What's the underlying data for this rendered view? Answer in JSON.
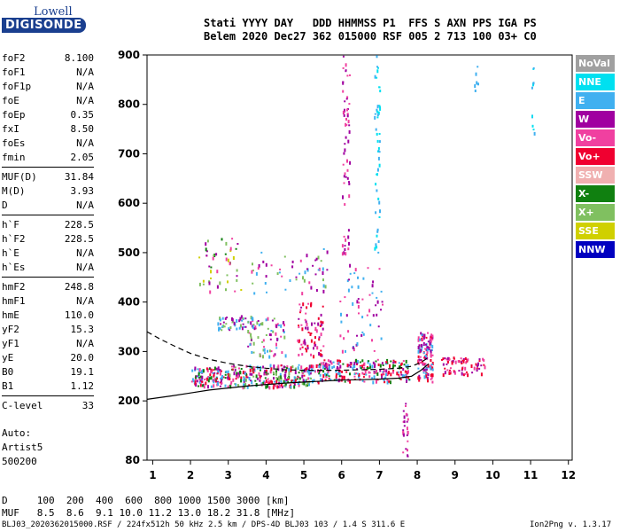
{
  "logo": {
    "line1": "Lowell",
    "line2": "DIGISONDE"
  },
  "header": {
    "labels": "Stati YYYY DAY   DDD HHMMSS P1  FFS S AXN PPS IGA PS",
    "values": "Belem 2020 Dec27 362 015000 RSF 005 2 713 100 03+ C0"
  },
  "params": [
    {
      "label": "foF2",
      "value": "8.100"
    },
    {
      "label": "foF1",
      "value": "N/A"
    },
    {
      "label": "foF1p",
      "value": "N/A"
    },
    {
      "label": "foE",
      "value": "N/A"
    },
    {
      "label": "foEp",
      "value": "0.35"
    },
    {
      "label": "fxI",
      "value": "8.50"
    },
    {
      "label": "foEs",
      "value": "N/A"
    },
    {
      "label": "fmin",
      "value": "2.05"
    },
    {
      "label": "MUF(D)",
      "value": "31.84"
    },
    {
      "label": "M(D)",
      "value": "3.93"
    },
    {
      "label": "D",
      "value": "N/A"
    },
    {
      "label": "h`F",
      "value": "228.5"
    },
    {
      "label": "h`F2",
      "value": "228.5"
    },
    {
      "label": "h`E",
      "value": "N/A"
    },
    {
      "label": "h`Es",
      "value": "N/A"
    },
    {
      "label": "hmF2",
      "value": "248.8"
    },
    {
      "label": "hmF1",
      "value": "N/A"
    },
    {
      "label": "hmE",
      "value": "110.0"
    },
    {
      "label": "yF2",
      "value": "15.3"
    },
    {
      "label": "yF1",
      "value": "N/A"
    },
    {
      "label": "yE",
      "value": "20.0"
    },
    {
      "label": "B0",
      "value": "19.1"
    },
    {
      "label": "B1",
      "value": "1.12"
    },
    {
      "label": "C-level",
      "value": "33"
    }
  ],
  "auto": {
    "line1": "Auto:",
    "line2": "Artist5",
    "line3": "500200"
  },
  "legend": [
    {
      "label": "NoVal",
      "color": "#a0a0a0"
    },
    {
      "label": "NNE",
      "color": "#00e0f0"
    },
    {
      "label": "E",
      "color": "#40b0f0"
    },
    {
      "label": "W",
      "color": "#a000a0"
    },
    {
      "label": "Vo-",
      "color": "#f040a0"
    },
    {
      "label": "Vo+",
      "color": "#f00030"
    },
    {
      "label": "SSW",
      "color": "#f0b0b0"
    },
    {
      "label": "X-",
      "color": "#108010"
    },
    {
      "label": "X+",
      "color": "#80c060"
    },
    {
      "label": "SSE",
      "color": "#d0d000"
    },
    {
      "label": "NNW",
      "color": "#0000c0"
    }
  ],
  "footer": {
    "row1": "D     100  200  400  600  800 1000 1500 3000 [km]",
    "row2": "MUF   8.5  8.6  9.1 10.0 11.2 13.0 18.2 31.8 [MHz]",
    "file": "BLJ03_2020362015000.RSF / 224fx512h 50 kHz 2.5 km / DPS-4D BLJ03 103 / 1.4 S 311.6 E",
    "version": "Ion2Png v. 1.3.17"
  },
  "chart_data": {
    "type": "scatter",
    "xlim": [
      0.85,
      12.1
    ],
    "ylim": [
      80,
      900
    ],
    "x_ticks": [
      1,
      2,
      3,
      4,
      5,
      6,
      7,
      8,
      9,
      10,
      11,
      12
    ],
    "y_ticks": [
      80,
      200,
      300,
      400,
      500,
      600,
      700,
      800,
      900
    ],
    "grid": false,
    "legend_position": "right",
    "trace_solid": [
      [
        0.85,
        203
      ],
      [
        1.5,
        210
      ],
      [
        2.0,
        216
      ],
      [
        2.5,
        222
      ],
      [
        3.0,
        226
      ],
      [
        3.5,
        230
      ],
      [
        4.0,
        233
      ],
      [
        4.5,
        236
      ],
      [
        5.0,
        238
      ],
      [
        5.5,
        240
      ],
      [
        6.0,
        242
      ],
      [
        6.5,
        243
      ],
      [
        7.0,
        244
      ],
      [
        7.5,
        246
      ],
      [
        7.85,
        250
      ],
      [
        8.1,
        262
      ],
      [
        8.3,
        275
      ]
    ],
    "trace_dashed": [
      [
        0.85,
        340
      ],
      [
        1.2,
        325
      ],
      [
        1.6,
        310
      ],
      [
        2.0,
        296
      ],
      [
        2.5,
        284
      ],
      [
        3.0,
        276
      ],
      [
        3.5,
        270
      ],
      [
        4.0,
        266
      ],
      [
        4.5,
        263
      ],
      [
        5.0,
        262
      ],
      [
        5.5,
        262
      ],
      [
        6.0,
        262
      ],
      [
        6.5,
        263
      ],
      [
        7.0,
        264
      ],
      [
        7.5,
        266
      ],
      [
        7.85,
        270
      ],
      [
        8.1,
        278
      ],
      [
        8.3,
        288
      ]
    ],
    "echo_regions": [
      {
        "x": [
          2.0,
          3.0
        ],
        "y": [
          230,
          270
        ],
        "count": 110,
        "colors": [
          "#f00030",
          "#f040a0",
          "#a000a0",
          "#108010",
          "#40b0f0"
        ]
      },
      {
        "x": [
          3.0,
          5.2
        ],
        "y": [
          230,
          275
        ],
        "count": 260,
        "colors": [
          "#f00030",
          "#f040a0",
          "#a000a0",
          "#108010",
          "#40b0f0",
          "#80c060"
        ]
      },
      {
        "x": [
          5.2,
          7.8
        ],
        "y": [
          240,
          285
        ],
        "count": 240,
        "colors": [
          "#f00030",
          "#f040a0",
          "#a000a0",
          "#108010",
          "#40b0f0"
        ]
      },
      {
        "x": [
          8.0,
          8.4
        ],
        "y": [
          240,
          340
        ],
        "count": 120,
        "colors": [
          "#f00030",
          "#f040a0",
          "#a000a0",
          "#40b0f0"
        ]
      },
      {
        "x": [
          8.6,
          9.8
        ],
        "y": [
          255,
          290
        ],
        "count": 70,
        "colors": [
          "#f00030",
          "#f040a0",
          "#a000a0"
        ]
      },
      {
        "x": [
          3.5,
          4.5
        ],
        "y": [
          290,
          370
        ],
        "count": 70,
        "colors": [
          "#a000a0",
          "#f040a0",
          "#40b0f0",
          "#80c060"
        ]
      },
      {
        "x": [
          4.8,
          5.5
        ],
        "y": [
          290,
          400
        ],
        "count": 70,
        "colors": [
          "#a000a0",
          "#f040a0",
          "#f00030"
        ]
      },
      {
        "x": [
          2.7,
          3.7
        ],
        "y": [
          345,
          375
        ],
        "count": 50,
        "colors": [
          "#40b0f0",
          "#80c060",
          "#a000a0"
        ]
      },
      {
        "x": [
          2.2,
          3.4
        ],
        "y": [
          420,
          530
        ],
        "count": 45,
        "colors": [
          "#a000a0",
          "#f040a0",
          "#80c060",
          "#d0d000",
          "#108010"
        ]
      },
      {
        "x": [
          3.6,
          5.6
        ],
        "y": [
          420,
          510
        ],
        "count": 55,
        "colors": [
          "#a000a0",
          "#40b0f0",
          "#80c060",
          "#f040a0"
        ]
      },
      {
        "x": [
          5.9,
          7.1
        ],
        "y": [
          290,
          480
        ],
        "count": 60,
        "colors": [
          "#a000a0",
          "#f040a0",
          "#40b0f0"
        ]
      },
      {
        "x": [
          6.0,
          6.2
        ],
        "y": [
          500,
          900
        ],
        "count": 60,
        "colors": [
          "#a000a0",
          "#f040a0"
        ]
      },
      {
        "x": [
          6.85,
          7.0
        ],
        "y": [
          500,
          900
        ],
        "count": 50,
        "colors": [
          "#40b0f0",
          "#00e0f0"
        ]
      },
      {
        "x": [
          7.6,
          7.75
        ],
        "y": [
          80,
          200
        ],
        "count": 25,
        "colors": [
          "#a000a0",
          "#f040a0"
        ]
      },
      {
        "x": [
          9.5,
          9.6
        ],
        "y": [
          820,
          880
        ],
        "count": 6,
        "colors": [
          "#40b0f0"
        ]
      },
      {
        "x": [
          11.0,
          11.1
        ],
        "y": [
          740,
          890
        ],
        "count": 10,
        "colors": [
          "#40b0f0",
          "#00e0f0"
        ]
      }
    ]
  }
}
